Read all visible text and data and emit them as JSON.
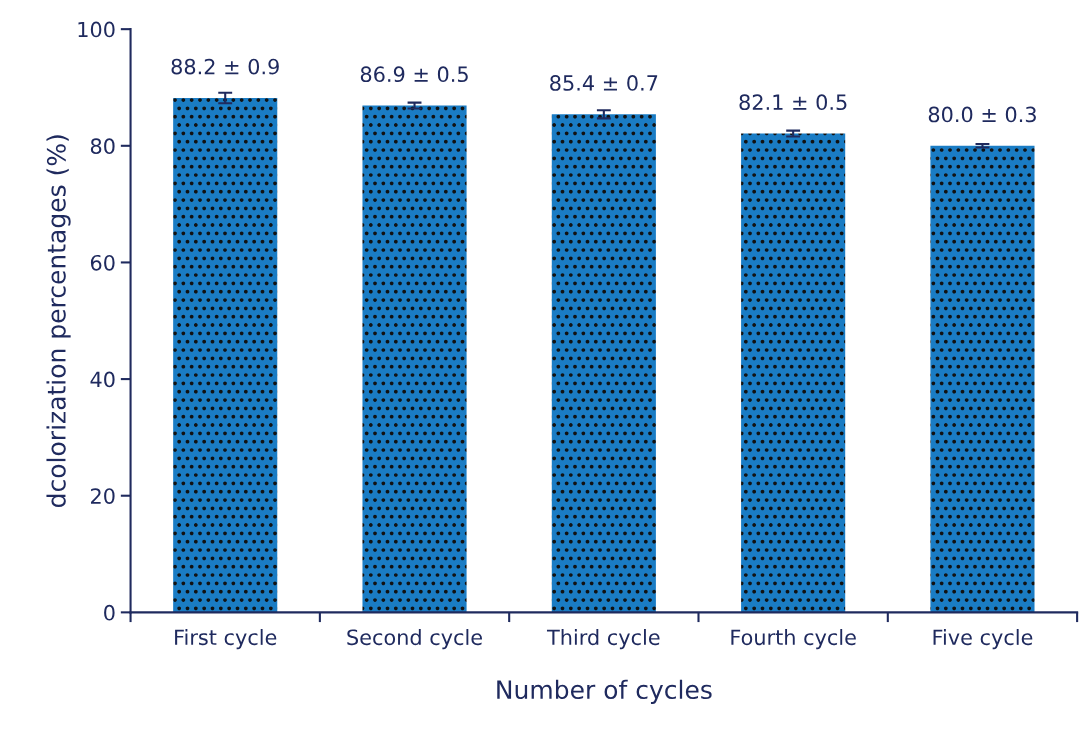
{
  "chart_data": {
    "type": "bar",
    "xlabel": "Number of cycles",
    "ylabel": "dcolorization percentages (%)",
    "categories": [
      "First cycle",
      "Second cycle",
      "Third cycle",
      "Fourth cycle",
      "Five cycle"
    ],
    "values": [
      88.2,
      86.9,
      85.4,
      82.1,
      80.0
    ],
    "errors": [
      0.9,
      0.5,
      0.7,
      0.5,
      0.3
    ],
    "value_labels": [
      "88.2 ± 0.9",
      "86.9 ± 0.5",
      "85.4 ± 0.7",
      "82.1 ± 0.5",
      "80.0 ± 0.3"
    ],
    "color": "#1a7cc4",
    "ylim": [
      0,
      100
    ],
    "yticks": [
      0,
      20,
      40,
      60,
      80,
      100
    ],
    "grid": false
  }
}
